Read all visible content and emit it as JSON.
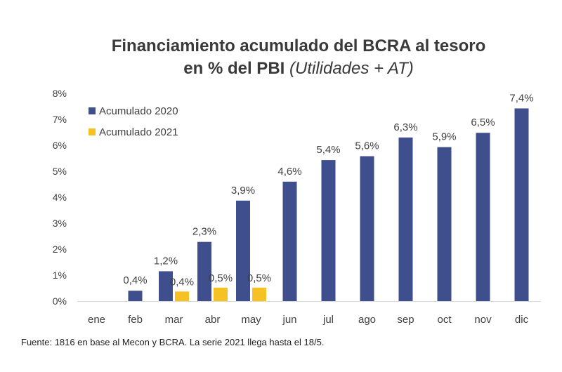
{
  "title_main": "Financiamiento acumulado del BCRA al tesoro",
  "title_line2_prefix": "en % del PBI",
  "title_line2_italic": "(Utilidades + AT)",
  "source": "Fuente: 1816 en base al Mecon y BCRA. La serie 2021 llega hasta el 18/5.",
  "colors": {
    "series_2020": "#3f4e8c",
    "series_2021": "#f5c123",
    "text": "#404040"
  },
  "chart_data": {
    "type": "bar",
    "title": "Financiamiento acumulado del BCRA al tesoro en % del PBI (Utilidades + AT)",
    "categories": [
      "ene",
      "feb",
      "mar",
      "abr",
      "may",
      "jun",
      "jul",
      "ago",
      "sep",
      "oct",
      "nov",
      "dic"
    ],
    "ylim": [
      0,
      8
    ],
    "yticks": [
      0,
      1,
      2,
      3,
      4,
      5,
      6,
      7,
      8
    ],
    "ytick_labels": [
      "0%",
      "1%",
      "2%",
      "3%",
      "4%",
      "5%",
      "6%",
      "7%",
      "8%"
    ],
    "legend_position": "top-left",
    "series": [
      {
        "name": "Acumulado 2020",
        "values": [
          0,
          0.4,
          1.15,
          2.28,
          3.87,
          4.6,
          5.43,
          5.58,
          6.3,
          5.93,
          6.48,
          7.42
        ],
        "labels": [
          "",
          "0,4%",
          "1,2%",
          "2,3%",
          "3,9%",
          "4,6%",
          "5,4%",
          "5,6%",
          "6,3%",
          "5,9%",
          "6,5%",
          "7,4%"
        ]
      },
      {
        "name": "Acumulado 2021",
        "values": [
          null,
          null,
          0.37,
          0.52,
          0.52,
          null,
          null,
          null,
          null,
          null,
          null,
          null
        ],
        "labels": [
          "",
          "",
          "0,4%",
          "0,5%",
          "0,5%",
          "",
          "",
          "",
          "",
          "",
          "",
          ""
        ]
      }
    ]
  }
}
